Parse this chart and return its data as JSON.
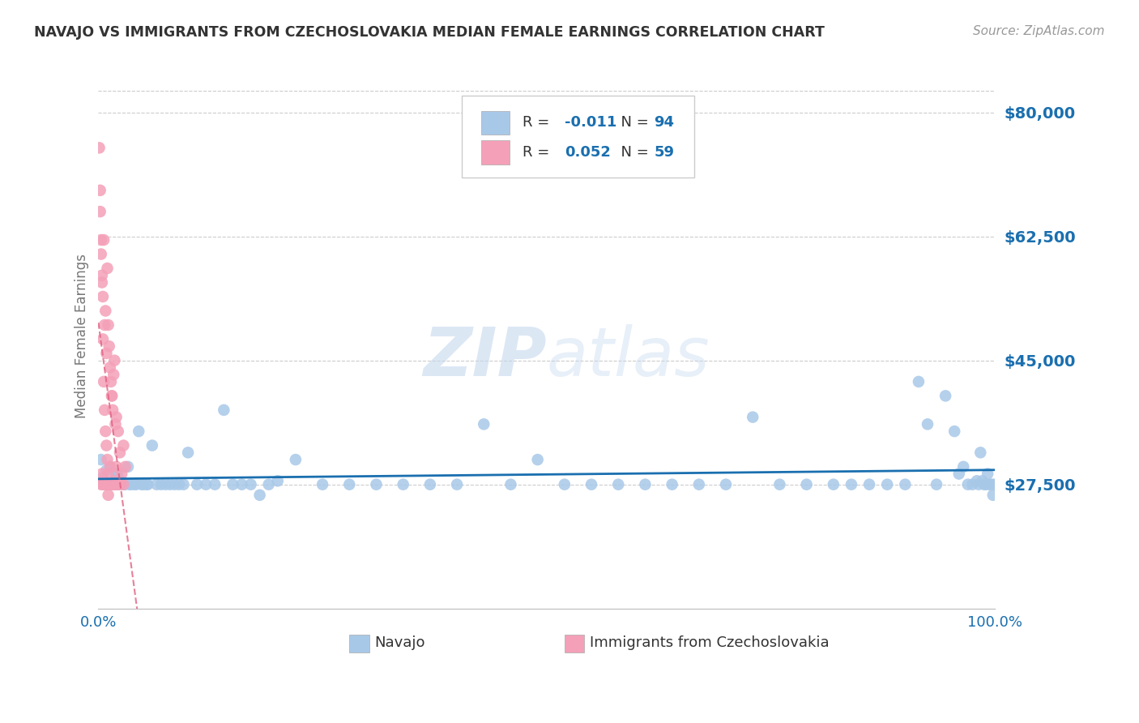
{
  "title": "NAVAJO VS IMMIGRANTS FROM CZECHOSLOVAKIA MEDIAN FEMALE EARNINGS CORRELATION CHART",
  "source_text": "Source: ZipAtlas.com",
  "ylabel": "Median Female Earnings",
  "watermark": "ZIPatlas",
  "xlim": [
    0.0,
    1.0
  ],
  "ylim": [
    10000,
    87000
  ],
  "yticks": [
    27500,
    45000,
    62500,
    80000
  ],
  "ytick_labels": [
    "$27,500",
    "$45,000",
    "$62,500",
    "$80,000"
  ],
  "xticks": [
    0.0,
    1.0
  ],
  "xtick_labels": [
    "0.0%",
    "100.0%"
  ],
  "navajo_color": "#a8c8e8",
  "navajo_trend_color": "#1a6faf",
  "czech_color": "#f4a0b8",
  "czech_trend_color": "#e06080",
  "legend_box_navajo": "#a8c8e8",
  "legend_box_czech": "#f4a0b8",
  "background_color": "#ffffff",
  "grid_color": "#cccccc",
  "title_color": "#333333",
  "axis_label_color": "#777777",
  "tick_color": "#1a6faf",
  "source_color": "#999999",
  "R_navajo": -0.011,
  "N_navajo": 94,
  "R_czech": 0.052,
  "N_czech": 59,
  "navajo_x": [
    0.003,
    0.005,
    0.007,
    0.009,
    0.011,
    0.013,
    0.015,
    0.017,
    0.019,
    0.021,
    0.023,
    0.025,
    0.027,
    0.03,
    0.033,
    0.036,
    0.04,
    0.045,
    0.05,
    0.055,
    0.06,
    0.07,
    0.08,
    0.09,
    0.1,
    0.12,
    0.14,
    0.16,
    0.18,
    0.2,
    0.22,
    0.25,
    0.28,
    0.31,
    0.34,
    0.37,
    0.4,
    0.43,
    0.46,
    0.49,
    0.52,
    0.55,
    0.58,
    0.61,
    0.64,
    0.67,
    0.7,
    0.73,
    0.76,
    0.79,
    0.82,
    0.84,
    0.86,
    0.88,
    0.9,
    0.915,
    0.925,
    0.935,
    0.945,
    0.955,
    0.96,
    0.965,
    0.97,
    0.975,
    0.98,
    0.982,
    0.984,
    0.986,
    0.988,
    0.99,
    0.992,
    0.994,
    0.996,
    0.998,
    0.999,
    0.008,
    0.012,
    0.016,
    0.02,
    0.024,
    0.028,
    0.035,
    0.042,
    0.048,
    0.054,
    0.065,
    0.075,
    0.085,
    0.095,
    0.11,
    0.13,
    0.15,
    0.17,
    0.19
  ],
  "navajo_y": [
    31000,
    28500,
    27500,
    29500,
    27500,
    30000,
    27500,
    28000,
    27500,
    29000,
    27500,
    28000,
    27500,
    27500,
    30000,
    27500,
    27500,
    35000,
    27500,
    27500,
    33000,
    27500,
    27500,
    27500,
    32000,
    27500,
    38000,
    27500,
    26000,
    28000,
    31000,
    27500,
    27500,
    27500,
    27500,
    27500,
    27500,
    36000,
    27500,
    31000,
    27500,
    27500,
    27500,
    27500,
    27500,
    27500,
    27500,
    37000,
    27500,
    27500,
    27500,
    27500,
    27500,
    27500,
    27500,
    42000,
    36000,
    27500,
    40000,
    35000,
    29000,
    30000,
    27500,
    27500,
    28000,
    27500,
    32000,
    28000,
    27500,
    27500,
    29000,
    27500,
    27500,
    26000,
    27500,
    27500,
    27500,
    27500,
    29000,
    27500,
    27500,
    27500,
    27500,
    27500,
    27500,
    27500,
    27500,
    27500,
    27500,
    27500,
    27500,
    27500,
    27500,
    27500
  ],
  "czech_x": [
    0.001,
    0.002,
    0.003,
    0.004,
    0.005,
    0.006,
    0.007,
    0.008,
    0.009,
    0.01,
    0.011,
    0.012,
    0.013,
    0.014,
    0.015,
    0.016,
    0.017,
    0.018,
    0.019,
    0.02,
    0.022,
    0.024,
    0.026,
    0.028,
    0.03,
    0.003,
    0.004,
    0.005,
    0.006,
    0.007,
    0.008,
    0.009,
    0.01,
    0.011,
    0.012,
    0.013,
    0.014,
    0.015,
    0.016,
    0.017,
    0.018,
    0.019,
    0.02,
    0.022,
    0.025,
    0.028,
    0.002,
    0.003,
    0.004,
    0.005,
    0.006,
    0.007,
    0.008,
    0.009,
    0.01,
    0.011,
    0.012,
    0.015,
    0.02
  ],
  "czech_y": [
    75000,
    66000,
    60000,
    57000,
    54000,
    62000,
    50000,
    52000,
    46000,
    58000,
    50000,
    47000,
    44000,
    42000,
    40000,
    38000,
    43000,
    45000,
    36000,
    37000,
    35000,
    32000,
    29000,
    33000,
    30000,
    27500,
    29000,
    27500,
    28000,
    27500,
    27500,
    27500,
    27500,
    26000,
    27500,
    30000,
    27500,
    27500,
    27500,
    28000,
    27500,
    27500,
    27500,
    27500,
    27500,
    27500,
    69000,
    62000,
    56000,
    48000,
    42000,
    38000,
    35000,
    33000,
    31000,
    29000,
    27500,
    40000,
    30000
  ]
}
